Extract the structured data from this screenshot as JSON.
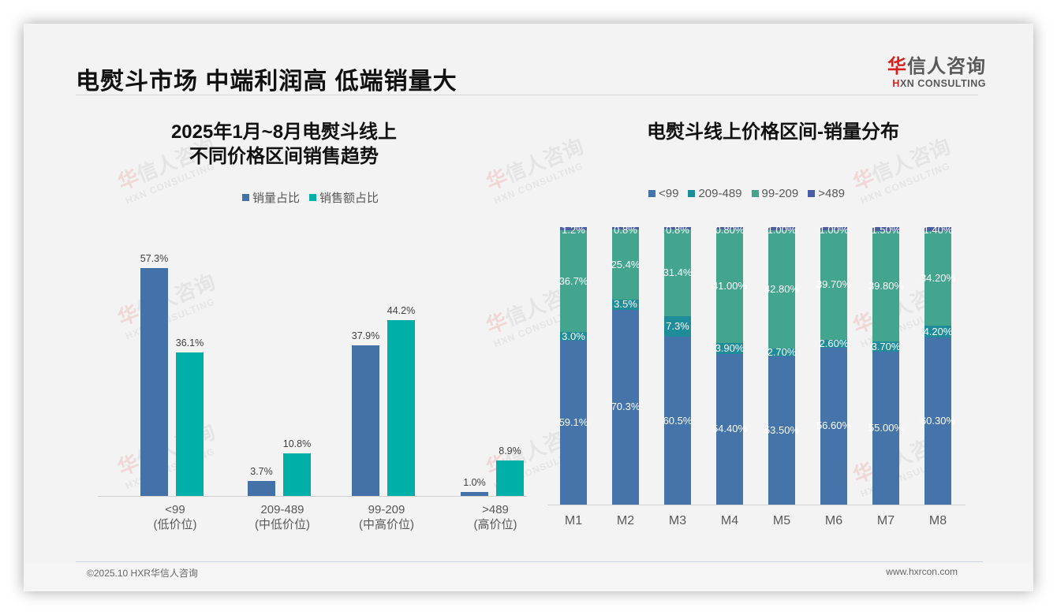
{
  "header": {
    "title": "电熨斗市场 中端利润高 低端销量大",
    "logo_cn_red": "华",
    "logo_cn_rest": "信人咨询",
    "logo_en_red": "H",
    "logo_en_rest": "XN CONSULTING"
  },
  "watermark": {
    "cn_red": "华",
    "cn_rest": "信人咨询",
    "en": "HXN CONSULTING"
  },
  "colors": {
    "sales_volume": "#4472a8",
    "sales_amount": "#00b0a8",
    "lt99": "#4474a9",
    "r209_489": "#1f8c9a",
    "r99_209": "#44a58f",
    "gt489": "#4a5ea3"
  },
  "left_chart": {
    "title_line1": "2025年1月~8月电熨斗线上",
    "title_line2": "不同价格区间销售趋势",
    "legend": [
      {
        "label": "销量占比",
        "color": "#4472a8"
      },
      {
        "label": "销售额占比",
        "color": "#00b0a8"
      }
    ],
    "categories": [
      {
        "name": "<99",
        "sub": "(低价位)",
        "volume": 57.3,
        "volume_label": "57.3%",
        "amount": 36.1,
        "amount_label": "36.1%"
      },
      {
        "name": "209-489",
        "sub": "(中低价位)",
        "volume": 3.7,
        "volume_label": "3.7%",
        "amount": 10.8,
        "amount_label": "10.8%"
      },
      {
        "name": "99-209",
        "sub": "(中高价位)",
        "volume": 37.9,
        "volume_label": "37.9%",
        "amount": 44.2,
        "amount_label": "44.2%"
      },
      {
        "name": ">489",
        "sub": "(高价位)",
        "volume": 1.0,
        "volume_label": "1.0%",
        "amount": 8.9,
        "amount_label": "8.9%"
      }
    ]
  },
  "right_chart": {
    "title": "电熨斗线上价格区间-销量分布",
    "legend": [
      {
        "label": "<99",
        "color": "#4474a9"
      },
      {
        "label": "209-489",
        "color": "#1f8c9a"
      },
      {
        "label": "99-209",
        "color": "#44a58f"
      },
      {
        "label": ">489",
        "color": "#4a5ea3"
      }
    ],
    "months": [
      {
        "label": "M1",
        "lt99": 59.1,
        "lt99_label": "59.1%",
        "r209_489": 3.0,
        "r209_489_label": "3.0%",
        "r99_209": 36.7,
        "r99_209_label": "36.7%",
        "gt489": 1.2,
        "gt489_label": "1.2%"
      },
      {
        "label": "M2",
        "lt99": 70.3,
        "lt99_label": "70.3%",
        "r209_489": 3.5,
        "r209_489_label": "3.5%",
        "r99_209": 25.4,
        "r99_209_label": "25.4%",
        "gt489": 0.8,
        "gt489_label": "0.8%"
      },
      {
        "label": "M3",
        "lt99": 60.5,
        "lt99_label": "60.5%",
        "r209_489": 7.3,
        "r209_489_label": "7.3%",
        "r99_209": 31.4,
        "r99_209_label": "31.4%",
        "gt489": 0.8,
        "gt489_label": "0.8%"
      },
      {
        "label": "M4",
        "lt99": 54.4,
        "lt99_label": "54.40%",
        "r209_489": 3.9,
        "r209_489_label": "3.90%",
        "r99_209": 41.0,
        "r99_209_label": "41.00%",
        "gt489": 0.8,
        "gt489_label": "0.80%"
      },
      {
        "label": "M5",
        "lt99": 53.5,
        "lt99_label": "53.50%",
        "r209_489": 2.7,
        "r209_489_label": "2.70%",
        "r99_209": 42.8,
        "r99_209_label": "42.80%",
        "gt489": 1.0,
        "gt489_label": "1.00%"
      },
      {
        "label": "M6",
        "lt99": 56.6,
        "lt99_label": "56.60%",
        "r209_489": 2.6,
        "r209_489_label": "2.60%",
        "r99_209": 39.7,
        "r99_209_label": "39.70%",
        "gt489": 1.0,
        "gt489_label": "1.00%"
      },
      {
        "label": "M7",
        "lt99": 55.0,
        "lt99_label": "55.00%",
        "r209_489": 3.7,
        "r209_489_label": "3.70%",
        "r99_209": 39.8,
        "r99_209_label": "39.80%",
        "gt489": 1.5,
        "gt489_label": "1.50%"
      },
      {
        "label": "M8",
        "lt99": 60.3,
        "lt99_label": "60.30%",
        "r209_489": 4.2,
        "r209_489_label": "4.20%",
        "r99_209": 34.2,
        "r99_209_label": "34.20%",
        "gt489": 1.4,
        "gt489_label": "1.40%"
      }
    ]
  },
  "footer": {
    "left": "©2025.10 HXR华信人咨询",
    "right": "www.hxrcon.com"
  },
  "chart_data": [
    {
      "type": "bar",
      "title": "2025年1月~8月电熨斗线上 不同价格区间销售趋势",
      "categories": [
        "<99 (低价位)",
        "209-489 (中低价位)",
        "99-209 (中高价位)",
        ">489 (高价位)"
      ],
      "series": [
        {
          "name": "销量占比",
          "values": [
            57.3,
            3.7,
            37.9,
            1.0
          ]
        },
        {
          "name": "销售额占比",
          "values": [
            36.1,
            10.8,
            44.2,
            8.9
          ]
        }
      ],
      "xlabel": "",
      "ylabel": "",
      "unit": "%",
      "legend_position": "top",
      "grid": false
    },
    {
      "type": "bar",
      "stacked": true,
      "title": "电熨斗线上价格区间-销量分布",
      "categories": [
        "M1",
        "M2",
        "M3",
        "M4",
        "M5",
        "M6",
        "M7",
        "M8"
      ],
      "series": [
        {
          "name": "<99",
          "values": [
            59.1,
            70.3,
            60.5,
            54.4,
            53.5,
            56.6,
            55.0,
            60.3
          ]
        },
        {
          "name": "209-489",
          "values": [
            3.0,
            3.5,
            7.3,
            3.9,
            2.7,
            2.6,
            3.7,
            4.2
          ]
        },
        {
          "name": "99-209",
          "values": [
            36.7,
            25.4,
            31.4,
            41.0,
            42.8,
            39.7,
            39.8,
            34.2
          ]
        },
        {
          "name": ">489",
          "values": [
            1.2,
            0.8,
            0.8,
            0.8,
            1.0,
            1.0,
            1.5,
            1.4
          ]
        }
      ],
      "xlabel": "",
      "ylabel": "",
      "unit": "%",
      "ylim": [
        0,
        100
      ],
      "legend_position": "top",
      "grid": false
    }
  ]
}
